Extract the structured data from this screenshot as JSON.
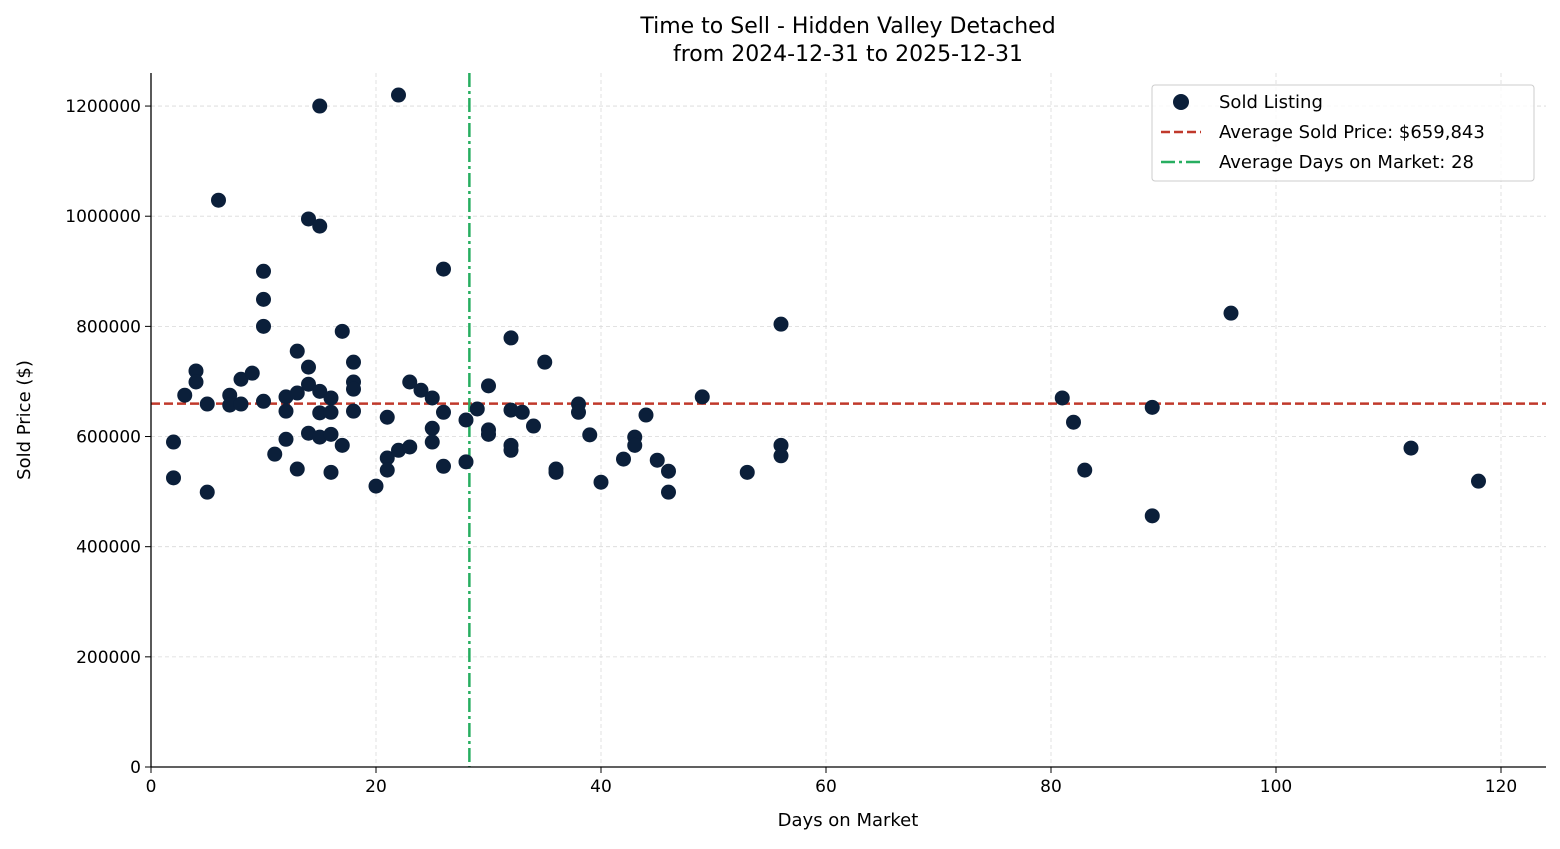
{
  "chart_data": {
    "type": "scatter",
    "title": "Time to Sell - Hidden Valley Detached",
    "subtitle": "from 2024-12-31 to 2025-12-31",
    "xlabel": "Days on Market",
    "ylabel": "Sold Price ($)",
    "xlim": [
      0,
      124
    ],
    "ylim": [
      0,
      1260000
    ],
    "xticks": [
      0,
      20,
      40,
      60,
      80,
      100,
      120
    ],
    "yticks": [
      0,
      200000,
      400000,
      600000,
      800000,
      1000000,
      1200000
    ],
    "grid": true,
    "legend_position": "top-right",
    "colors": {
      "points": "#0b1f3a",
      "avg_price": "#c0392b",
      "avg_days": "#27ae60",
      "grid": "#d9d9d9"
    },
    "series": [
      {
        "name": "Sold Listing",
        "points": [
          [
            2,
            590000
          ],
          [
            2,
            525000
          ],
          [
            3,
            675000
          ],
          [
            4,
            719000
          ],
          [
            4,
            699000
          ],
          [
            5,
            659000
          ],
          [
            5,
            499000
          ],
          [
            6,
            1029000
          ],
          [
            7,
            675000
          ],
          [
            7,
            657000
          ],
          [
            8,
            704000
          ],
          [
            8,
            659000
          ],
          [
            9,
            715000
          ],
          [
            10,
            900000
          ],
          [
            10,
            849000
          ],
          [
            10,
            800000
          ],
          [
            10,
            664000
          ],
          [
            11,
            568000
          ],
          [
            12,
            672000
          ],
          [
            12,
            646000
          ],
          [
            12,
            595000
          ],
          [
            13,
            755000
          ],
          [
            13,
            679000
          ],
          [
            13,
            541000
          ],
          [
            14,
            995000
          ],
          [
            14,
            726000
          ],
          [
            14,
            695000
          ],
          [
            14,
            606000
          ],
          [
            15,
            1200000
          ],
          [
            15,
            982000
          ],
          [
            15,
            682000
          ],
          [
            15,
            643000
          ],
          [
            15,
            599000
          ],
          [
            16,
            670000
          ],
          [
            16,
            644000
          ],
          [
            16,
            604000
          ],
          [
            16,
            535000
          ],
          [
            17,
            791000
          ],
          [
            17,
            584000
          ],
          [
            18,
            735000
          ],
          [
            18,
            699000
          ],
          [
            18,
            686000
          ],
          [
            18,
            646000
          ],
          [
            20,
            510000
          ],
          [
            21,
            635000
          ],
          [
            21,
            561000
          ],
          [
            21,
            539000
          ],
          [
            22,
            1220000
          ],
          [
            22,
            575000
          ],
          [
            23,
            699000
          ],
          [
            23,
            581000
          ],
          [
            24,
            684000
          ],
          [
            25,
            670000
          ],
          [
            25,
            615000
          ],
          [
            25,
            590000
          ],
          [
            26,
            904000
          ],
          [
            26,
            644000
          ],
          [
            26,
            546000
          ],
          [
            28,
            630000
          ],
          [
            28,
            554000
          ],
          [
            29,
            650000
          ],
          [
            30,
            692000
          ],
          [
            30,
            612000
          ],
          [
            30,
            604000
          ],
          [
            32,
            779000
          ],
          [
            32,
            648000
          ],
          [
            32,
            584000
          ],
          [
            32,
            575000
          ],
          [
            33,
            644000
          ],
          [
            34,
            619000
          ],
          [
            35,
            735000
          ],
          [
            36,
            541000
          ],
          [
            36,
            535000
          ],
          [
            38,
            659000
          ],
          [
            38,
            644000
          ],
          [
            39,
            603000
          ],
          [
            40,
            517000
          ],
          [
            42,
            559000
          ],
          [
            43,
            599000
          ],
          [
            43,
            584000
          ],
          [
            44,
            639000
          ],
          [
            45,
            557000
          ],
          [
            46,
            537000
          ],
          [
            46,
            499000
          ],
          [
            49,
            672000
          ],
          [
            53,
            535000
          ],
          [
            56,
            804000
          ],
          [
            56,
            584000
          ],
          [
            56,
            565000
          ],
          [
            81,
            670000
          ],
          [
            82,
            626000
          ],
          [
            83,
            539000
          ],
          [
            89,
            653000
          ],
          [
            89,
            456000
          ],
          [
            96,
            824000
          ],
          [
            112,
            579000
          ],
          [
            118,
            519000
          ]
        ]
      }
    ],
    "reference_lines": [
      {
        "name": "Average Sold Price: $659,843",
        "orientation": "horizontal",
        "value": 659843,
        "style": "dashed"
      },
      {
        "name": "Average Days on Market: 28",
        "orientation": "vertical",
        "value": 28.3,
        "style": "dashdot"
      }
    ]
  }
}
